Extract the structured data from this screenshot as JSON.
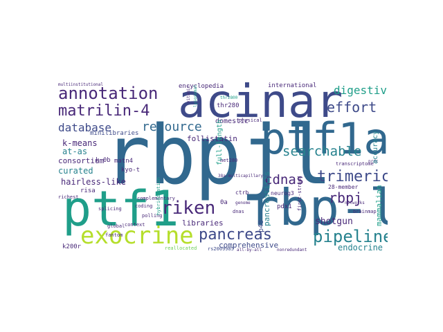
{
  "palette": {
    "purple": "#482878",
    "indigo": "#3e4a89",
    "blue": "#31688e",
    "teal": "#26828e",
    "green": "#1f9e89",
    "lime": "#6ece58",
    "yellow": "#b5de2b"
  },
  "words": [
    {
      "text": "rbpjl",
      "color": "blue"
    },
    {
      "text": "acinar",
      "color": "indigo"
    },
    {
      "text": "ptf1a",
      "color": "blue"
    },
    {
      "text": "rbp-l",
      "color": "blue"
    },
    {
      "text": "ptf1",
      "color": "green"
    },
    {
      "text": "exocrine",
      "color": "yellow"
    },
    {
      "text": "annotation",
      "color": "purple"
    },
    {
      "text": "matrilin-4",
      "color": "purple"
    },
    {
      "text": "database",
      "color": "indigo"
    },
    {
      "text": "resource",
      "color": "blue"
    },
    {
      "text": "trimeric",
      "color": "indigo"
    },
    {
      "text": "pancreas",
      "color": "indigo"
    },
    {
      "text": "pipeline",
      "color": "teal"
    },
    {
      "text": "riken",
      "color": "purple"
    },
    {
      "text": "digestive",
      "color": "green"
    },
    {
      "text": "effort",
      "color": "indigo"
    },
    {
      "text": "searchable",
      "color": "teal"
    },
    {
      "text": "cdnas",
      "color": "purple"
    },
    {
      "text": "rbpj",
      "color": "purple"
    },
    {
      "text": "k-means",
      "color": "purple"
    },
    {
      "text": "at-as",
      "color": "teal"
    },
    {
      "text": "consortium",
      "color": "purple"
    },
    {
      "text": "curated",
      "color": "teal"
    },
    {
      "text": "hairless-like",
      "color": "purple"
    },
    {
      "text": "libraries",
      "color": "purple"
    },
    {
      "text": "comprehensive",
      "color": "indigo"
    },
    {
      "text": "endocrine",
      "color": "teal"
    },
    {
      "text": "shotgun",
      "color": "purple"
    },
    {
      "text": "encyclopedia",
      "color": "purple"
    },
    {
      "text": "international",
      "color": "purple"
    },
    {
      "text": "thr280",
      "color": "purple"
    },
    {
      "text": "domestic",
      "color": "purple"
    },
    {
      "text": "follistatin",
      "color": "purple"
    },
    {
      "text": "minilibraries",
      "color": "indigo"
    },
    {
      "text": "pancreatitis",
      "color": "teal"
    },
    {
      "text": "neurog3",
      "color": "purple"
    },
    {
      "text": "28-member",
      "color": "purple"
    },
    {
      "text": "mammalian",
      "color": "green"
    },
    {
      "text": "pdx1",
      "color": "purple"
    },
    {
      "text": "p48",
      "color": "indigo"
    },
    {
      "text": "full-length",
      "color": "green"
    },
    {
      "text": "accuracy",
      "color": "teal"
    },
    {
      "text": "k200r",
      "color": "purple"
    },
    {
      "text": "risa",
      "color": "purple"
    },
    {
      "text": "kyo-t",
      "color": "purple"
    },
    {
      "text": "matn4",
      "color": "purple"
    },
    {
      "text": "complementary",
      "color": "purple"
    },
    {
      "text": "transcriptome",
      "color": "purple"
    },
    {
      "text": "first-strand",
      "color": "purple"
    },
    {
      "text": "ctrb",
      "color": "purple"
    },
    {
      "text": "splicing",
      "color": "purple"
    },
    {
      "text": "global",
      "color": "purple"
    },
    {
      "text": "polling",
      "color": "purple"
    },
    {
      "text": "reallocated",
      "color": "lime"
    },
    {
      "text": "rs2009985",
      "color": "indigo"
    },
    {
      "text": "dnas",
      "color": "purple"
    },
    {
      "text": "fantom",
      "color": "purple"
    },
    {
      "text": "richest",
      "color": "purple"
    },
    {
      "text": "coding",
      "color": "purple"
    },
    {
      "text": "genome",
      "color": "purple"
    },
    {
      "text": "networks",
      "color": "purple"
    },
    {
      "text": "brainmap",
      "color": "purple"
    },
    {
      "text": "nonredundant",
      "color": "purple"
    },
    {
      "text": "context",
      "color": "purple"
    },
    {
      "text": "physical",
      "color": "purple"
    },
    {
      "text": "multiinstitutional",
      "color": "purple"
    },
    {
      "text": "k 0b",
      "color": "purple"
    },
    {
      "text": "38a-multicapillary",
      "color": "purple"
    },
    {
      "text": "all-by-all",
      "color": "purple"
    },
    {
      "text": "hybridization",
      "color": "green"
    },
    {
      "text": "vitamin",
      "color": "purple"
    },
    {
      "text": "lysosomal",
      "color": "green"
    },
    {
      "text": "nrdc",
      "color": "purple"
    },
    {
      "text": "thr2800",
      "color": "green"
    },
    {
      "text": "0a",
      "color": "purple"
    },
    {
      "text": "met280",
      "color": "purple"
    }
  ]
}
